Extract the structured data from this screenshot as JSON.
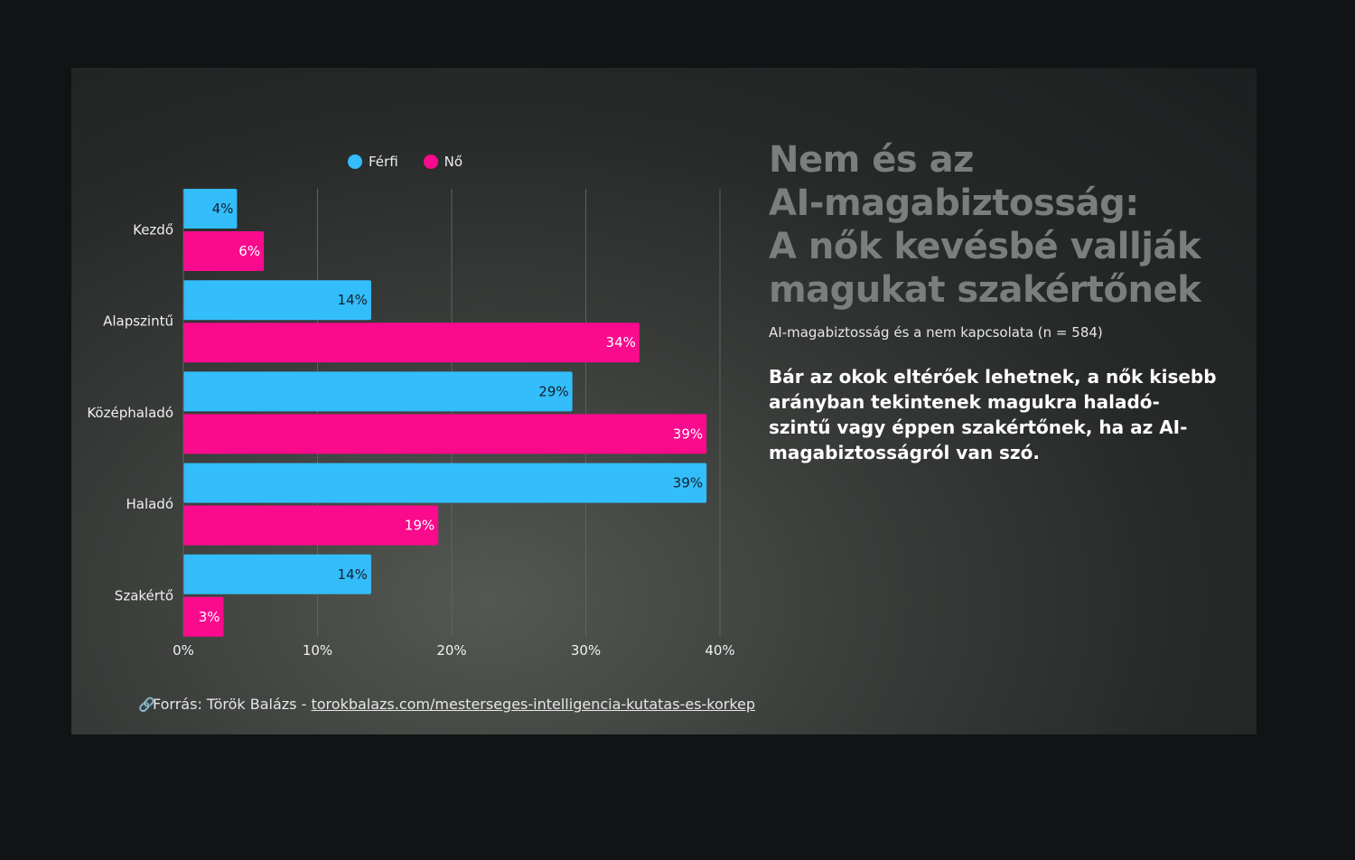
{
  "header": {
    "title": "Nem és az\nAI-magabiztosság:\nA nők kevésbé vallják\nmagukat szakértőnek",
    "subtitle": "AI-magabiztosság és a nem kapcsolata (n = 584)",
    "description": "Bár az okok eltérőek lehetnek, a nők kisebb arányban tekintenek magukra haladó-szintű vagy éppen szakértőnek, ha az AI-magabiztosságról van szó."
  },
  "source": {
    "icon": "link-icon",
    "label": "Forrás: Török Balázs - ",
    "link_text": "torokbalazs.com/mesterseges-intelligencia-kutatas-es-korkep"
  },
  "colors": {
    "ferfi": "#33bdfb",
    "no": "#fa0a8d",
    "grid": "#5f625f"
  },
  "chart_data": {
    "type": "bar",
    "orientation": "horizontal",
    "categories": [
      "Kezdő",
      "Alapszintű",
      "Középhaladó",
      "Haladó",
      "Szakértő"
    ],
    "series": [
      {
        "name": "Férfi",
        "values": [
          4,
          14,
          29,
          39,
          14
        ],
        "labels": [
          "4%",
          "14%",
          "29%",
          "39%",
          "14%"
        ]
      },
      {
        "name": "Nő",
        "values": [
          6,
          34,
          39,
          19,
          3
        ],
        "labels": [
          "6%",
          "34%",
          "39%",
          "19%",
          "3%"
        ]
      }
    ],
    "xlim": [
      0,
      40
    ],
    "xticks": [
      "0%",
      "10%",
      "20%",
      "30%",
      "40%"
    ],
    "grid": true,
    "legend": "top"
  }
}
